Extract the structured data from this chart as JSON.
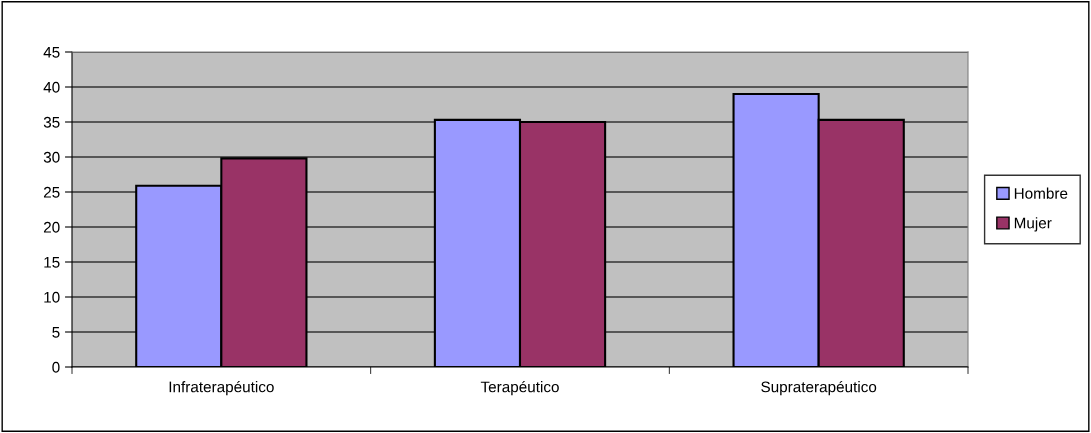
{
  "chart_data": {
    "type": "bar",
    "categories": [
      "Infraterapéutico",
      "Terapéutico",
      "Supraterapéutico"
    ],
    "series": [
      {
        "name": "Hombre",
        "color": "#9999ff",
        "values": [
          25.9,
          35.3,
          39.0
        ]
      },
      {
        "name": "Mujer",
        "color": "#993366",
        "values": [
          29.8,
          35.0,
          35.3
        ]
      }
    ],
    "ylim": [
      0,
      45
    ],
    "yticks": [
      0,
      5,
      10,
      15,
      20,
      25,
      30,
      35,
      40,
      45
    ],
    "grid": "y",
    "legend": "right"
  }
}
